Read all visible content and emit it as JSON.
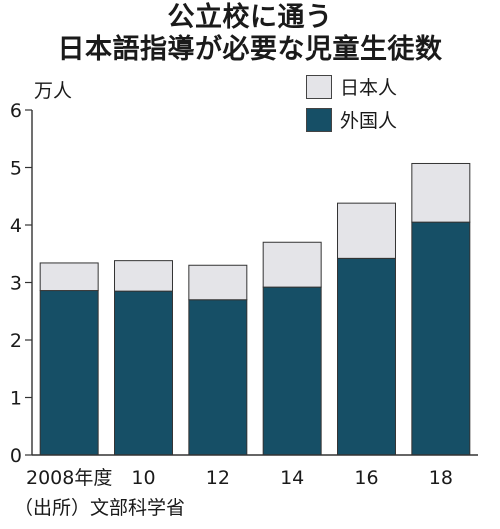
{
  "chart_data": {
    "type": "bar",
    "stacked": true,
    "title_lines": [
      "公立校に通う",
      "日本語指導が必要な児童生徒数"
    ],
    "unit_label": "万人",
    "source": "（出所）文部科学省",
    "categories": [
      "2008年度",
      "10",
      "12",
      "14",
      "16",
      "18"
    ],
    "series": [
      {
        "name": "外国人",
        "color": "#164f66",
        "values": [
          2.86,
          2.85,
          2.7,
          2.92,
          3.42,
          4.05
        ]
      },
      {
        "name": "日本人",
        "color": "#e4e4e8",
        "values": [
          0.48,
          0.53,
          0.6,
          0.78,
          0.96,
          1.02
        ]
      }
    ],
    "legend_order": [
      "日本人",
      "外国人"
    ],
    "y_ticks": [
      0,
      1,
      2,
      3,
      4,
      5,
      6
    ],
    "ylim": [
      0,
      6
    ],
    "grid": false
  }
}
